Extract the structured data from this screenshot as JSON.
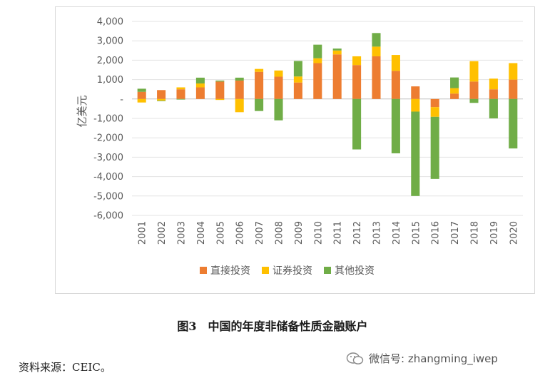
{
  "chart_data": {
    "type": "bar",
    "stacked": true,
    "ylabel": "亿美元",
    "ylim": [
      -6000,
      4000
    ],
    "yticks": [
      4000,
      3000,
      2000,
      1000,
      0,
      -1000,
      -2000,
      -3000,
      -4000,
      -5000,
      -6000
    ],
    "ytick_labels": [
      "4,000",
      "3,000",
      "2,000",
      "1,000",
      "-",
      "-1,000",
      "-2,000",
      "-3,000",
      "-4,000",
      "-5,000",
      "-6,000"
    ],
    "categories": [
      "2001",
      "2002",
      "2003",
      "2004",
      "2005",
      "2006",
      "2007",
      "2008",
      "2009",
      "2010",
      "2011",
      "2012",
      "2013",
      "2014",
      "2015",
      "2016",
      "2017",
      "2018",
      "2019",
      "2020"
    ],
    "series": [
      {
        "name": "直接投资",
        "color": "#ED7D31",
        "values": [
          370,
          460,
          500,
          600,
          900,
          950,
          1400,
          1150,
          850,
          1850,
          2300,
          1750,
          2200,
          1450,
          650,
          -420,
          280,
          900,
          500,
          1000
        ]
      },
      {
        "name": "证券投资",
        "color": "#FFC000",
        "values": [
          -180,
          -80,
          100,
          200,
          -50,
          -680,
          150,
          320,
          310,
          250,
          200,
          450,
          500,
          820,
          -650,
          -500,
          280,
          1050,
          550,
          850
        ]
      },
      {
        "name": "其他投资",
        "color": "#70AD47",
        "values": [
          160,
          -30,
          -30,
          300,
          50,
          150,
          -620,
          -1100,
          800,
          700,
          100,
          -2600,
          700,
          -2800,
          -4350,
          -3200,
          550,
          -200,
          -1000,
          -2550
        ]
      }
    ],
    "legend_position": "bottom",
    "grid": true
  },
  "caption": "图3　中国的年度非储备性质金融账户",
  "source": "资料来源：CEIC。",
  "watermark": {
    "icon": "wechat-search-icon",
    "text": "微信号: zhangming_iwep"
  }
}
